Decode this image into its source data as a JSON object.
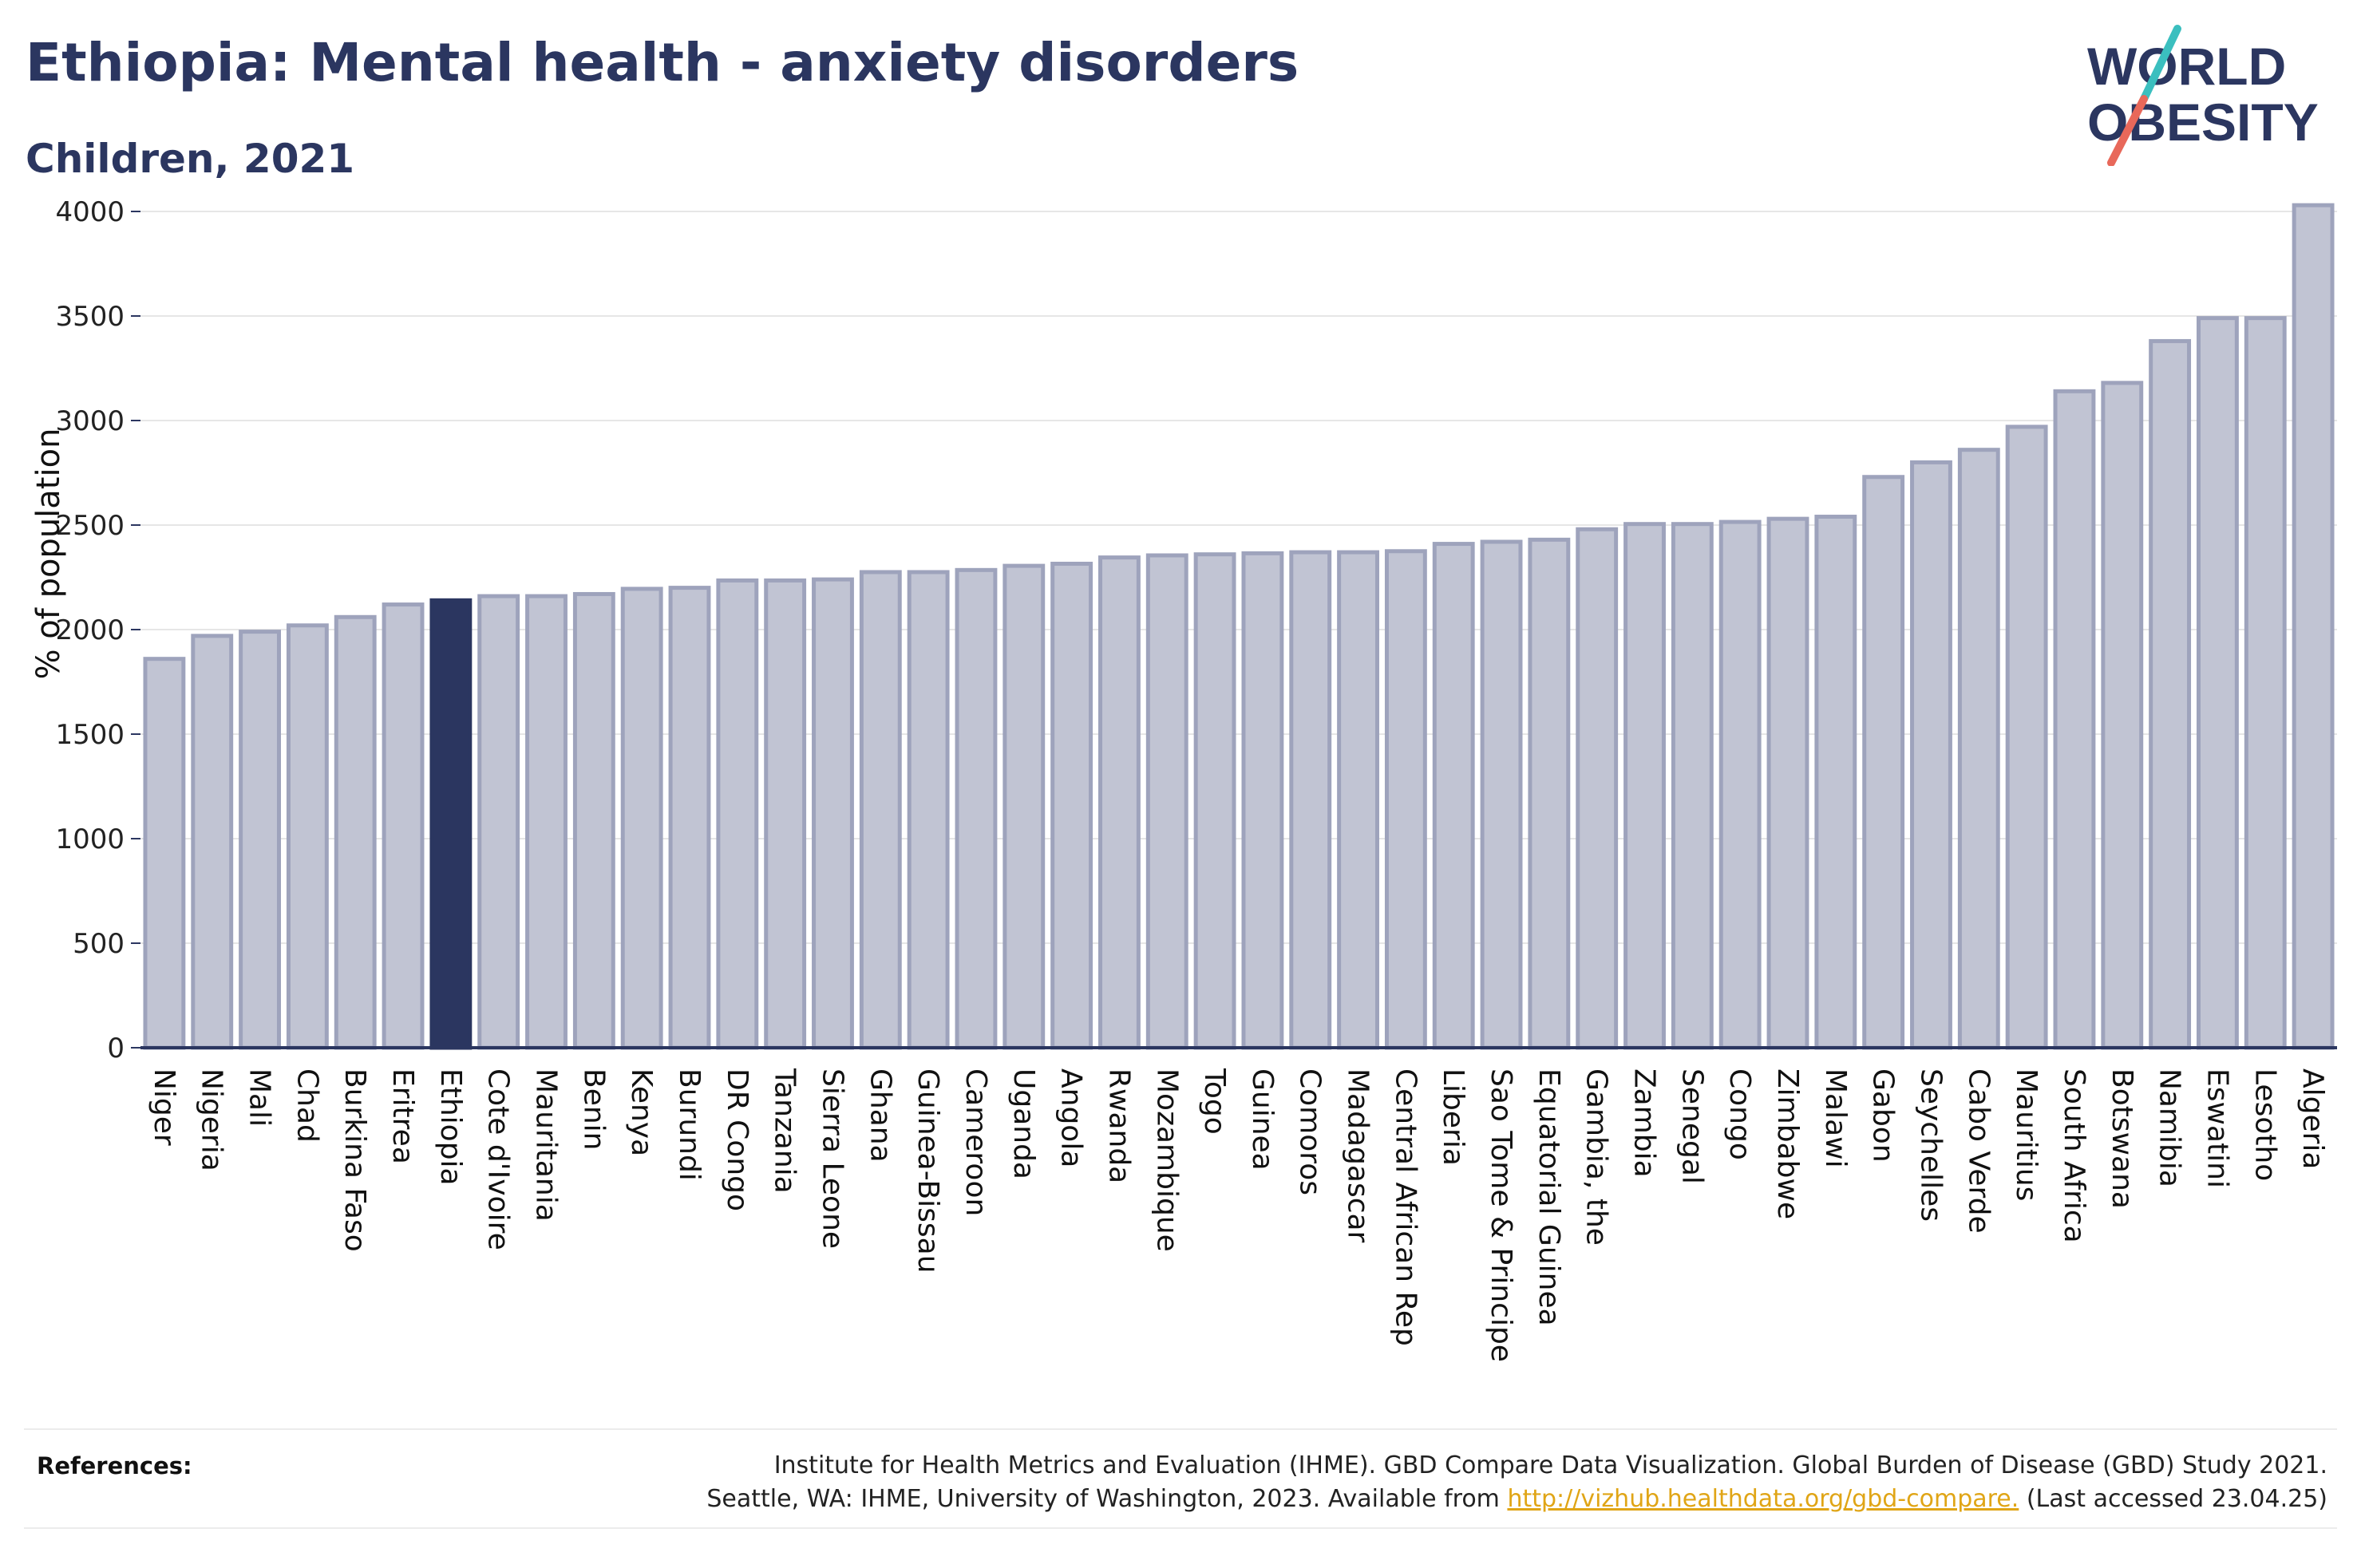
{
  "header": {
    "title": "Ethiopia: Mental health - anxiety disorders",
    "subtitle": "Children, 2021"
  },
  "logo": {
    "line1": "WORLD",
    "line2": "OBESITY",
    "colors": {
      "text": "#2b3660",
      "slash_top": "#3bbfbf",
      "slash_bottom": "#e8685a"
    }
  },
  "colors": {
    "bar": "#c1c4d3",
    "bar_border": "#9ea3bc",
    "highlight": "#2b3660",
    "grid": "#e6e6e6",
    "axis": "#2b3660"
  },
  "chart_data": {
    "type": "bar",
    "title": "Ethiopia: Mental health - anxiety disorders",
    "subtitle": "Children, 2021",
    "ylabel": "% of population",
    "xlabel": "",
    "ylim": [
      0,
      4000
    ],
    "yticks": [
      0,
      500,
      1000,
      1500,
      2000,
      2500,
      3000,
      3500,
      4000
    ],
    "grid": true,
    "highlight": "Ethiopia",
    "categories": [
      "Niger",
      "Nigeria",
      "Mali",
      "Chad",
      "Burkina Faso",
      "Eritrea",
      "Ethiopia",
      "Cote d'Ivoire",
      "Mauritania",
      "Benin",
      "Kenya",
      "Burundi",
      "DR Congo",
      "Tanzania",
      "Sierra Leone",
      "Ghana",
      "Guinea-Bissau",
      "Cameroon",
      "Uganda",
      "Angola",
      "Rwanda",
      "Mozambique",
      "Togo",
      "Guinea",
      "Comoros",
      "Madagascar",
      "Central African Rep",
      "Liberia",
      "Sao Tome & Principe",
      "Equatorial Guinea",
      "Gambia, the",
      "Zambia",
      "Senegal",
      "Congo",
      "Zimbabwe",
      "Malawi",
      "Gabon",
      "Seychelles",
      "Cabo Verde",
      "Mauritius",
      "South Africa",
      "Botswana",
      "Namibia",
      "Eswatini",
      "Lesotho",
      "Algeria"
    ],
    "values": [
      1860,
      1970,
      1990,
      2020,
      2060,
      2120,
      2140,
      2160,
      2160,
      2170,
      2195,
      2200,
      2235,
      2235,
      2240,
      2275,
      2275,
      2285,
      2305,
      2315,
      2345,
      2355,
      2360,
      2365,
      2370,
      2370,
      2375,
      2410,
      2420,
      2430,
      2480,
      2505,
      2505,
      2515,
      2530,
      2540,
      2730,
      2800,
      2860,
      2970,
      3140,
      3180,
      3380,
      3490,
      3490,
      4030
    ]
  },
  "references": {
    "label": "References:",
    "line1": "Institute for Health Metrics and Evaluation (IHME). GBD Compare Data Visualization. Global Burden of Disease (GBD) Study 2021.",
    "line2_prefix": "Seattle, WA: IHME, University of Washington, 2023. Available from ",
    "link": "http://vizhub.healthdata.org/gbd-compare.",
    "line2_suffix": " (Last accessed 23.04.25)"
  }
}
